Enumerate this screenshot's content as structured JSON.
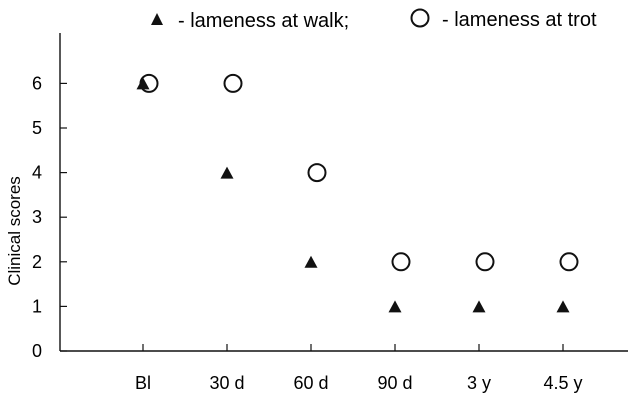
{
  "chart_data": {
    "type": "scatter",
    "title": "",
    "xlabel": "",
    "ylabel": "Clinical scores",
    "categories": [
      "Bl",
      "30 d",
      "60 d",
      "90 d",
      "3 y",
      "4.5 y"
    ],
    "ylim": [
      0,
      7
    ],
    "yticks": [
      0,
      1,
      2,
      3,
      4,
      5,
      6
    ],
    "grid": false,
    "legend_position": "top",
    "series": [
      {
        "name": "lameness at walk",
        "marker": "filled-triangle",
        "color": "#111111",
        "values": [
          6,
          4,
          2,
          1,
          1,
          1
        ]
      },
      {
        "name": "lameness at trot",
        "marker": "open-circle",
        "color": "#111111",
        "values": [
          6,
          6,
          4,
          2,
          2,
          2
        ]
      }
    ]
  },
  "legend": {
    "walk_label": "- lameness at walk;",
    "trot_label": "- lameness at trot"
  }
}
